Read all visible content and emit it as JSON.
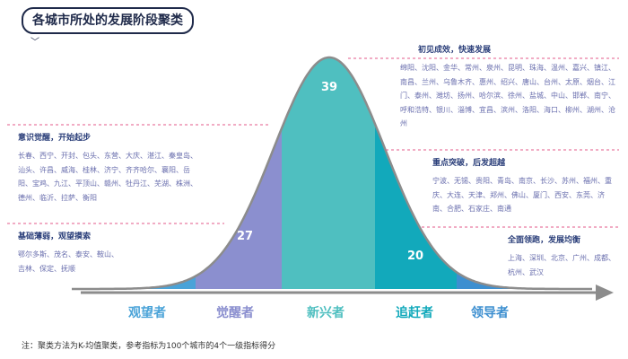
{
  "title": "各城市所处的发展阶段聚类",
  "note": "注：聚类方法为K-均值聚类，参考指标为100个城市的4个一级指标得分",
  "colors": {
    "c1": "#4aa3d8",
    "c2": "#8b8fcf",
    "c3": "#4fbfc0",
    "c4": "#12a9bb",
    "c5": "#3d8fd0",
    "curve": "#8c8c8c",
    "axis": "#8c8c8c",
    "divider": "#e35a88",
    "head": "#2b3f7a",
    "cities": "#6a6fae"
  },
  "groups": [
    {
      "id": "guanwang",
      "label": "观望者",
      "count": "7",
      "value": 7,
      "heading": "基础薄弱，观望摸索",
      "cities": "鄂尔多斯、茂名、泰安、鞍山、吉林、保定、抚顺"
    },
    {
      "id": "juexing",
      "label": "觉醒者",
      "count": "27",
      "value": 27,
      "heading": "意识觉醒，开始起步",
      "cities": "长春、西宁、开封、包头、东营、大庆、湛江、秦皇岛、汕头、许昌、威海、桂林、济宁、齐齐哈尔、襄阳、岳阳、宝鸡、九江、平顶山、赣州、牡丹江、芜湖、株洲、德州、临沂、拉萨、衡阳"
    },
    {
      "id": "xinxing",
      "label": "新兴者",
      "count": "39",
      "value": 39,
      "heading": "初见成效，快速发展",
      "cities": "绵阳、沈阳、金华、常州、泉州、昆明、珠海、温州、嘉兴、镇江、南昌、兰州、乌鲁木齐、惠州、绍兴、唐山、台州、太原、烟台、江门、泰州、潍坊、扬州、哈尔滨、徐州、盐城、中山、邯郸、南宁、呼和浩特、银川、淄博、宜昌、滨州、洛阳、海口、柳州、湖州、沧州"
    },
    {
      "id": "zhuigan",
      "label": "追赶者",
      "count": "20",
      "value": 20,
      "heading": "重点突破，后发超越",
      "cities": "宁波、无锡、贵阳、青岛、南京、长沙、苏州、福州、重庆、大连、天津、郑州、佛山、厦门、西安、东莞、济南、合肥、石家庄、南通"
    },
    {
      "id": "lingdao",
      "label": "领导者",
      "count": "7",
      "value": 7,
      "heading": "全面领跑，发展均衡",
      "cities": "上海、深圳、北京、广州、成都、杭州、武汉"
    }
  ]
}
